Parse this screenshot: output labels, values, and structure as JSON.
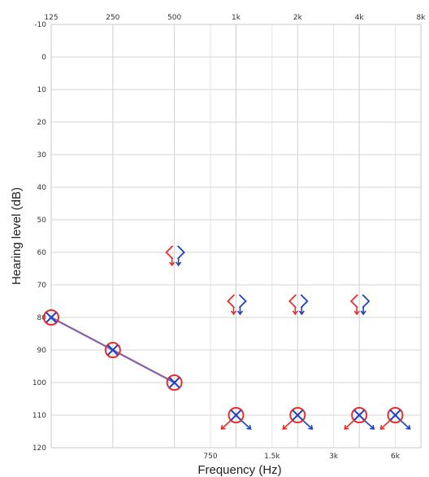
{
  "chart_data": {
    "type": "scatter",
    "xlabel": "Frequency (Hz)",
    "ylabel": "Hearing level (dB)",
    "x_scale": "log",
    "y_inverted": true,
    "ylim": [
      -10,
      120
    ],
    "grid": true,
    "x_major_ticks": [
      {
        "value": 125,
        "label": "125"
      },
      {
        "value": 250,
        "label": "250"
      },
      {
        "value": 500,
        "label": "500"
      },
      {
        "value": 1000,
        "label": "1k"
      },
      {
        "value": 2000,
        "label": "2k"
      },
      {
        "value": 4000,
        "label": "4k"
      },
      {
        "value": 8000,
        "label": "8k"
      }
    ],
    "x_minor_ticks": [
      {
        "value": 750,
        "label": "750"
      },
      {
        "value": 1500,
        "label": "1.5k"
      },
      {
        "value": 3000,
        "label": "3k"
      },
      {
        "value": 6000,
        "label": "6k"
      }
    ],
    "y_ticks": [
      -10,
      0,
      10,
      20,
      30,
      40,
      50,
      60,
      70,
      80,
      90,
      100,
      110,
      120
    ],
    "series": [
      {
        "marker": "circle-with-x",
        "connected": true,
        "colors": {
          "circle": "#e03030",
          "cross": "#2040c0",
          "line": "#8860a8"
        },
        "points": [
          {
            "x": 125,
            "y": 80
          },
          {
            "x": 250,
            "y": 90
          },
          {
            "x": 500,
            "y": 100
          }
        ]
      },
      {
        "marker": "circle-with-x-no-response",
        "connected": false,
        "colors": {
          "circle": "#e03030",
          "cross": "#2040c0"
        },
        "points": [
          {
            "x": 1000,
            "y": 110
          },
          {
            "x": 2000,
            "y": 110
          },
          {
            "x": 4000,
            "y": 110
          },
          {
            "x": 6000,
            "y": 110
          }
        ]
      },
      {
        "marker": "bone-brackets",
        "connected": false,
        "colors": {
          "left": "#e03030",
          "right": "#2040c0"
        },
        "points": [
          {
            "x": 500,
            "y": 60
          },
          {
            "x": 1000,
            "y": 75
          },
          {
            "x": 2000,
            "y": 75
          },
          {
            "x": 4000,
            "y": 75
          }
        ]
      }
    ]
  }
}
